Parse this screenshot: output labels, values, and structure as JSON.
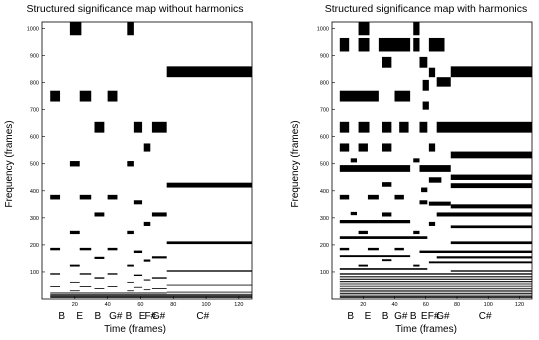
{
  "chart_data": [
    {
      "type": "heatmap",
      "title": "Structured significance map without harmonics",
      "xlabel": "Time (frames)",
      "ylabel": "Frequency (frames)",
      "xlim": [
        0,
        128
      ],
      "ylim": [
        0,
        1024
      ],
      "xticks": [
        20,
        40,
        60,
        80,
        100,
        120
      ],
      "yticks": [
        100,
        200,
        300,
        400,
        500,
        600,
        700,
        800,
        900,
        1000
      ],
      "note_labels": [
        {
          "text": "B",
          "x": 12
        },
        {
          "text": "E",
          "x": 23
        },
        {
          "text": "B",
          "x": 34
        },
        {
          "text": "G#",
          "x": 45
        },
        {
          "text": "B",
          "x": 53
        },
        {
          "text": "E",
          "x": 61
        },
        {
          "text": "F#",
          "x": 66
        },
        {
          "text": "G#",
          "x": 71
        },
        {
          "text": "C#",
          "x": 98
        }
      ],
      "blocks": [
        {
          "x0": 17,
          "x1": 24,
          "f0": 975,
          "f1": 1024
        },
        {
          "x0": 52,
          "x1": 56,
          "f0": 975,
          "f1": 1024
        },
        {
          "x0": 76,
          "x1": 128,
          "f0": 820,
          "f1": 860
        },
        {
          "x0": 5,
          "x1": 11,
          "f0": 730,
          "f1": 770
        },
        {
          "x0": 23,
          "x1": 30,
          "f0": 730,
          "f1": 770
        },
        {
          "x0": 40,
          "x1": 46,
          "f0": 730,
          "f1": 770
        },
        {
          "x0": 32,
          "x1": 38,
          "f0": 615,
          "f1": 655
        },
        {
          "x0": 56,
          "x1": 61,
          "f0": 615,
          "f1": 655
        },
        {
          "x0": 67,
          "x1": 76,
          "f0": 615,
          "f1": 655
        },
        {
          "x0": 62,
          "x1": 66,
          "f0": 545,
          "f1": 575
        },
        {
          "x0": 17,
          "x1": 23,
          "f0": 490,
          "f1": 510
        },
        {
          "x0": 52,
          "x1": 56,
          "f0": 490,
          "f1": 510
        },
        {
          "x0": 76,
          "x1": 128,
          "f0": 412,
          "f1": 430
        },
        {
          "x0": 5,
          "x1": 11,
          "f0": 368,
          "f1": 385
        },
        {
          "x0": 23,
          "x1": 30,
          "f0": 368,
          "f1": 385
        },
        {
          "x0": 40,
          "x1": 46,
          "f0": 368,
          "f1": 385
        },
        {
          "x0": 56,
          "x1": 61,
          "f0": 350,
          "f1": 365
        },
        {
          "x0": 32,
          "x1": 38,
          "f0": 305,
          "f1": 320
        },
        {
          "x0": 67,
          "x1": 76,
          "f0": 305,
          "f1": 320
        },
        {
          "x0": 62,
          "x1": 66,
          "f0": 270,
          "f1": 285
        },
        {
          "x0": 17,
          "x1": 23,
          "f0": 240,
          "f1": 252
        },
        {
          "x0": 52,
          "x1": 56,
          "f0": 240,
          "f1": 252
        },
        {
          "x0": 76,
          "x1": 128,
          "f0": 203,
          "f1": 213
        },
        {
          "x0": 5,
          "x1": 11,
          "f0": 180,
          "f1": 189
        },
        {
          "x0": 23,
          "x1": 30,
          "f0": 180,
          "f1": 189
        },
        {
          "x0": 40,
          "x1": 46,
          "f0": 180,
          "f1": 189
        },
        {
          "x0": 56,
          "x1": 61,
          "f0": 170,
          "f1": 179
        },
        {
          "x0": 67,
          "x1": 76,
          "f0": 150,
          "f1": 158
        },
        {
          "x0": 32,
          "x1": 38,
          "f0": 148,
          "f1": 156
        },
        {
          "x0": 62,
          "x1": 66,
          "f0": 138,
          "f1": 146
        },
        {
          "x0": 17,
          "x1": 23,
          "f0": 120,
          "f1": 127
        },
        {
          "x0": 52,
          "x1": 56,
          "f0": 120,
          "f1": 127
        },
        {
          "x0": 76,
          "x1": 128,
          "f0": 101,
          "f1": 106
        },
        {
          "x0": 5,
          "x1": 11,
          "f0": 90,
          "f1": 95
        },
        {
          "x0": 23,
          "x1": 30,
          "f0": 90,
          "f1": 95
        },
        {
          "x0": 40,
          "x1": 46,
          "f0": 90,
          "f1": 95
        },
        {
          "x0": 56,
          "x1": 61,
          "f0": 85,
          "f1": 90
        },
        {
          "x0": 32,
          "x1": 38,
          "f0": 75,
          "f1": 80
        },
        {
          "x0": 67,
          "x1": 76,
          "f0": 75,
          "f1": 80
        },
        {
          "x0": 62,
          "x1": 66,
          "f0": 68,
          "f1": 72
        },
        {
          "x0": 17,
          "x1": 23,
          "f0": 60,
          "f1": 63
        },
        {
          "x0": 52,
          "x1": 56,
          "f0": 60,
          "f1": 63
        },
        {
          "x0": 76,
          "x1": 128,
          "f0": 50,
          "f1": 53
        },
        {
          "x0": 5,
          "x1": 11,
          "f0": 45,
          "f1": 48
        },
        {
          "x0": 23,
          "x1": 30,
          "f0": 45,
          "f1": 48
        },
        {
          "x0": 40,
          "x1": 46,
          "f0": 45,
          "f1": 48
        },
        {
          "x0": 56,
          "x1": 61,
          "f0": 42,
          "f1": 45
        },
        {
          "x0": 32,
          "x1": 38,
          "f0": 37,
          "f1": 40
        },
        {
          "x0": 67,
          "x1": 76,
          "f0": 37,
          "f1": 40
        },
        {
          "x0": 62,
          "x1": 66,
          "f0": 34,
          "f1": 36
        },
        {
          "x0": 17,
          "x1": 23,
          "f0": 30,
          "f1": 32
        },
        {
          "x0": 52,
          "x1": 56,
          "f0": 30,
          "f1": 32
        },
        {
          "x0": 76,
          "x1": 128,
          "f0": 25,
          "f1": 27
        },
        {
          "x0": 5,
          "x1": 76,
          "f0": 22,
          "f1": 24
        },
        {
          "x0": 5,
          "x1": 128,
          "f0": 18,
          "f1": 19
        },
        {
          "x0": 5,
          "x1": 128,
          "f0": 14,
          "f1": 15
        },
        {
          "x0": 5,
          "x1": 128,
          "f0": 10,
          "f1": 11
        },
        {
          "x0": 5,
          "x1": 128,
          "f0": 6,
          "f1": 7
        }
      ]
    },
    {
      "type": "heatmap",
      "title": "Structured significance map with harmonics",
      "xlabel": "Time (frames)",
      "ylabel": "Frequency (frames)",
      "xlim": [
        0,
        128
      ],
      "ylim": [
        0,
        1024
      ],
      "xticks": [
        20,
        40,
        60,
        80,
        100,
        120
      ],
      "yticks": [
        100,
        200,
        300,
        400,
        500,
        600,
        700,
        800,
        900,
        1000
      ],
      "note_labels": [
        {
          "text": "B",
          "x": 12
        },
        {
          "text": "E",
          "x": 23
        },
        {
          "text": "B",
          "x": 34
        },
        {
          "text": "G#",
          "x": 44
        },
        {
          "text": "B",
          "x": 52
        },
        {
          "text": "E",
          "x": 59
        },
        {
          "text": "F#",
          "x": 65
        },
        {
          "text": "G#",
          "x": 71
        },
        {
          "text": "C#",
          "x": 98
        }
      ],
      "blocks": [
        {
          "x0": 17,
          "x1": 24,
          "f0": 975,
          "f1": 1024
        },
        {
          "x0": 52,
          "x1": 56,
          "f0": 975,
          "f1": 1024
        },
        {
          "x0": 5,
          "x1": 11,
          "f0": 915,
          "f1": 965
        },
        {
          "x0": 17,
          "x1": 24,
          "f0": 915,
          "f1": 965
        },
        {
          "x0": 30,
          "x1": 50,
          "f0": 915,
          "f1": 965
        },
        {
          "x0": 52,
          "x1": 56,
          "f0": 915,
          "f1": 965
        },
        {
          "x0": 62,
          "x1": 72,
          "f0": 915,
          "f1": 965
        },
        {
          "x0": 32,
          "x1": 38,
          "f0": 855,
          "f1": 895
        },
        {
          "x0": 56,
          "x1": 61,
          "f0": 855,
          "f1": 895
        },
        {
          "x0": 76,
          "x1": 128,
          "f0": 820,
          "f1": 860
        },
        {
          "x0": 62,
          "x1": 66,
          "f0": 820,
          "f1": 855
        },
        {
          "x0": 67,
          "x1": 76,
          "f0": 785,
          "f1": 820
        },
        {
          "x0": 58,
          "x1": 62,
          "f0": 770,
          "f1": 810
        },
        {
          "x0": 5,
          "x1": 30,
          "f0": 730,
          "f1": 770
        },
        {
          "x0": 40,
          "x1": 50,
          "f0": 730,
          "f1": 770
        },
        {
          "x0": 58,
          "x1": 62,
          "f0": 700,
          "f1": 730
        },
        {
          "x0": 5,
          "x1": 11,
          "f0": 615,
          "f1": 655
        },
        {
          "x0": 17,
          "x1": 24,
          "f0": 615,
          "f1": 655
        },
        {
          "x0": 32,
          "x1": 38,
          "f0": 615,
          "f1": 655
        },
        {
          "x0": 43,
          "x1": 49,
          "f0": 615,
          "f1": 655
        },
        {
          "x0": 56,
          "x1": 61,
          "f0": 615,
          "f1": 655
        },
        {
          "x0": 67,
          "x1": 128,
          "f0": 615,
          "f1": 655
        },
        {
          "x0": 5,
          "x1": 11,
          "f0": 545,
          "f1": 575
        },
        {
          "x0": 17,
          "x1": 23,
          "f0": 545,
          "f1": 575
        },
        {
          "x0": 32,
          "x1": 38,
          "f0": 545,
          "f1": 575
        },
        {
          "x0": 62,
          "x1": 66,
          "f0": 545,
          "f1": 575
        },
        {
          "x0": 76,
          "x1": 128,
          "f0": 520,
          "f1": 545
        },
        {
          "x0": 12,
          "x1": 16,
          "f0": 505,
          "f1": 520
        },
        {
          "x0": 52,
          "x1": 56,
          "f0": 505,
          "f1": 520
        },
        {
          "x0": 5,
          "x1": 50,
          "f0": 470,
          "f1": 495
        },
        {
          "x0": 56,
          "x1": 76,
          "f0": 470,
          "f1": 495
        },
        {
          "x0": 76,
          "x1": 128,
          "f0": 440,
          "f1": 460
        },
        {
          "x0": 62,
          "x1": 70,
          "f0": 430,
          "f1": 450
        },
        {
          "x0": 32,
          "x1": 38,
          "f0": 415,
          "f1": 432
        },
        {
          "x0": 76,
          "x1": 128,
          "f0": 410,
          "f1": 428
        },
        {
          "x0": 57,
          "x1": 61,
          "f0": 395,
          "f1": 412
        },
        {
          "x0": 5,
          "x1": 11,
          "f0": 368,
          "f1": 385
        },
        {
          "x0": 23,
          "x1": 30,
          "f0": 368,
          "f1": 385
        },
        {
          "x0": 40,
          "x1": 46,
          "f0": 368,
          "f1": 385
        },
        {
          "x0": 56,
          "x1": 61,
          "f0": 350,
          "f1": 365
        },
        {
          "x0": 62,
          "x1": 76,
          "f0": 345,
          "f1": 360
        },
        {
          "x0": 76,
          "x1": 128,
          "f0": 335,
          "f1": 350
        },
        {
          "x0": 12,
          "x1": 16,
          "f0": 310,
          "f1": 322
        },
        {
          "x0": 32,
          "x1": 38,
          "f0": 305,
          "f1": 320
        },
        {
          "x0": 67,
          "x1": 128,
          "f0": 305,
          "f1": 320
        },
        {
          "x0": 5,
          "x1": 50,
          "f0": 280,
          "f1": 292
        },
        {
          "x0": 62,
          "x1": 66,
          "f0": 270,
          "f1": 285
        },
        {
          "x0": 76,
          "x1": 128,
          "f0": 262,
          "f1": 272
        },
        {
          "x0": 17,
          "x1": 23,
          "f0": 240,
          "f1": 252
        },
        {
          "x0": 52,
          "x1": 56,
          "f0": 240,
          "f1": 252
        },
        {
          "x0": 5,
          "x1": 61,
          "f0": 222,
          "f1": 232
        },
        {
          "x0": 76,
          "x1": 128,
          "f0": 203,
          "f1": 213
        },
        {
          "x0": 5,
          "x1": 11,
          "f0": 180,
          "f1": 189
        },
        {
          "x0": 23,
          "x1": 30,
          "f0": 180,
          "f1": 189
        },
        {
          "x0": 40,
          "x1": 46,
          "f0": 180,
          "f1": 189
        },
        {
          "x0": 56,
          "x1": 128,
          "f0": 170,
          "f1": 179
        },
        {
          "x0": 5,
          "x1": 50,
          "f0": 155,
          "f1": 162
        },
        {
          "x0": 67,
          "x1": 128,
          "f0": 150,
          "f1": 158
        },
        {
          "x0": 32,
          "x1": 38,
          "f0": 140,
          "f1": 147
        },
        {
          "x0": 62,
          "x1": 128,
          "f0": 132,
          "f1": 139
        },
        {
          "x0": 17,
          "x1": 23,
          "f0": 120,
          "f1": 127
        },
        {
          "x0": 52,
          "x1": 56,
          "f0": 120,
          "f1": 127
        },
        {
          "x0": 5,
          "x1": 61,
          "f0": 108,
          "f1": 114
        },
        {
          "x0": 76,
          "x1": 128,
          "f0": 101,
          "f1": 106
        },
        {
          "x0": 5,
          "x1": 128,
          "f0": 90,
          "f1": 95
        },
        {
          "x0": 5,
          "x1": 128,
          "f0": 80,
          "f1": 84
        },
        {
          "x0": 5,
          "x1": 128,
          "f0": 71,
          "f1": 75
        },
        {
          "x0": 5,
          "x1": 128,
          "f0": 62,
          "f1": 66
        },
        {
          "x0": 5,
          "x1": 128,
          "f0": 54,
          "f1": 57
        },
        {
          "x0": 5,
          "x1": 128,
          "f0": 46,
          "f1": 49
        },
        {
          "x0": 5,
          "x1": 128,
          "f0": 39,
          "f1": 41
        },
        {
          "x0": 5,
          "x1": 128,
          "f0": 32,
          "f1": 34
        },
        {
          "x0": 5,
          "x1": 128,
          "f0": 26,
          "f1": 28
        },
        {
          "x0": 5,
          "x1": 128,
          "f0": 20,
          "f1": 22
        },
        {
          "x0": 5,
          "x1": 128,
          "f0": 15,
          "f1": 16
        },
        {
          "x0": 5,
          "x1": 128,
          "f0": 10,
          "f1": 11
        },
        {
          "x0": 5,
          "x1": 128,
          "f0": 6,
          "f1": 7
        }
      ]
    }
  ]
}
